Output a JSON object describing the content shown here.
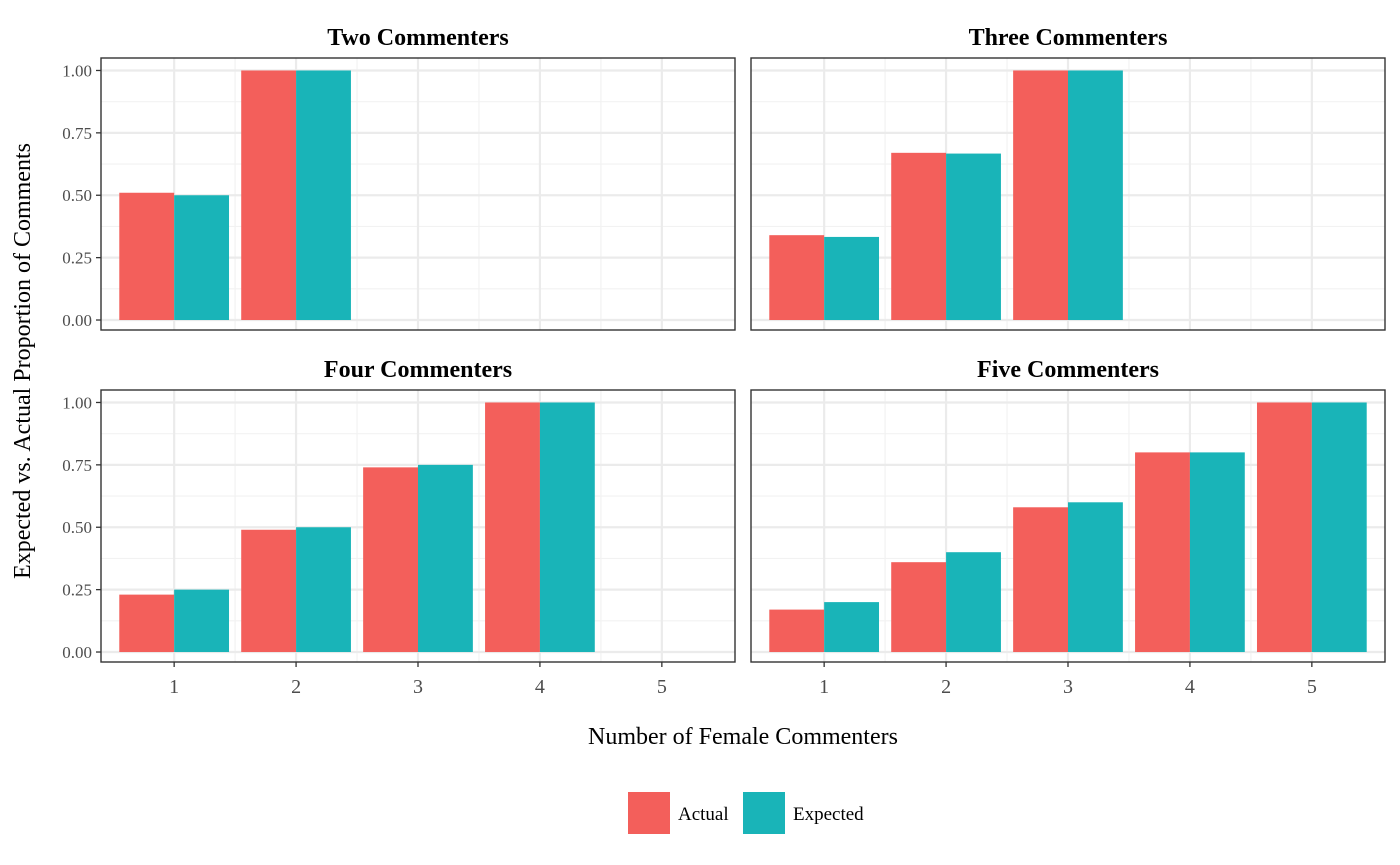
{
  "chart_data": {
    "type": "bar",
    "xlabel": "Number of Female Commenters",
    "ylabel": "Expected vs. Actual Proportion of Comments",
    "ylim": [
      -0.04,
      1.05
    ],
    "yticks": [
      0.0,
      0.25,
      0.5,
      0.75,
      1.0
    ],
    "ytick_labels": [
      "0.00",
      "0.25",
      "0.50",
      "0.75",
      "1.00"
    ],
    "categories": [
      "1",
      "2",
      "3",
      "4",
      "5"
    ],
    "grid": true,
    "legend": {
      "position": "bottom",
      "entries": [
        {
          "name": "Actual",
          "color": "#F35F5B"
        },
        {
          "name": "Expected",
          "color": "#19B4B8"
        }
      ]
    },
    "panels": [
      {
        "title": "Two Commenters",
        "series": [
          {
            "name": "Actual",
            "values": [
              0.51,
              1.0,
              null,
              null,
              null
            ]
          },
          {
            "name": "Expected",
            "values": [
              0.5,
              1.0,
              null,
              null,
              null
            ]
          }
        ]
      },
      {
        "title": "Three Commenters",
        "series": [
          {
            "name": "Actual",
            "values": [
              0.34,
              0.67,
              1.0,
              null,
              null
            ]
          },
          {
            "name": "Expected",
            "values": [
              0.333,
              0.667,
              1.0,
              null,
              null
            ]
          }
        ]
      },
      {
        "title": "Four Commenters",
        "series": [
          {
            "name": "Actual",
            "values": [
              0.23,
              0.49,
              0.74,
              1.0,
              null
            ]
          },
          {
            "name": "Expected",
            "values": [
              0.25,
              0.5,
              0.75,
              1.0,
              null
            ]
          }
        ]
      },
      {
        "title": "Five Commenters",
        "series": [
          {
            "name": "Actual",
            "values": [
              0.17,
              0.36,
              0.58,
              0.8,
              1.0
            ]
          },
          {
            "name": "Expected",
            "values": [
              0.2,
              0.4,
              0.6,
              0.8,
              1.0
            ]
          }
        ]
      }
    ]
  }
}
